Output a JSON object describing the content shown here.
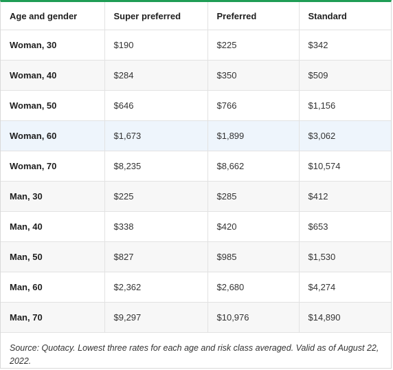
{
  "columns": [
    "Age and gender",
    "Super preferred",
    "Preferred",
    "Standard"
  ],
  "rows": [
    {
      "label": "Woman, 30",
      "super_preferred": "$190",
      "preferred": "$225",
      "standard": "$342"
    },
    {
      "label": "Woman, 40",
      "super_preferred": "$284",
      "preferred": "$350",
      "standard": "$509"
    },
    {
      "label": "Woman, 50",
      "super_preferred": "$646",
      "preferred": "$766",
      "standard": "$1,156"
    },
    {
      "label": "Woman, 60",
      "super_preferred": "$1,673",
      "preferred": "$1,899",
      "standard": "$3,062"
    },
    {
      "label": "Woman, 70",
      "super_preferred": "$8,235",
      "preferred": "$8,662",
      "standard": "$10,574"
    },
    {
      "label": "Man, 30",
      "super_preferred": "$225",
      "preferred": "$285",
      "standard": "$412"
    },
    {
      "label": "Man, 40",
      "super_preferred": "$338",
      "preferred": "$420",
      "standard": "$653"
    },
    {
      "label": "Man, 50",
      "super_preferred": "$827",
      "preferred": "$985",
      "standard": "$1,530"
    },
    {
      "label": "Man, 60",
      "super_preferred": "$2,362",
      "preferred": "$2,680",
      "standard": "$4,274"
    },
    {
      "label": "Man, 70",
      "super_preferred": "$9,297",
      "preferred": "$10,976",
      "standard": "$14,890"
    }
  ],
  "caption": "Source: Quotacy. Lowest three rates for each age and risk class averaged. Valid as of August 22, 2022.",
  "colors": {
    "accent_top_border": "#1f9d55",
    "row_highlight": "#eef5fc",
    "row_stripe": "#f7f7f7"
  }
}
